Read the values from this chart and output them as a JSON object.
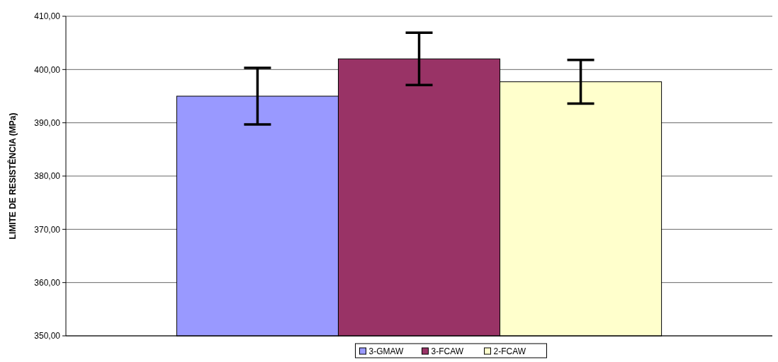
{
  "chart_data": {
    "type": "bar",
    "ylabel": "LIMITE DE RESISTÊNCIA (MPa)",
    "categories": [
      null
    ],
    "series": [
      {
        "name": "3-GMAW",
        "color": "#9999ff",
        "values": [
          395.0
        ],
        "errors": [
          5.3
        ]
      },
      {
        "name": "3-FCAW",
        "color": "#993366",
        "values": [
          402.0
        ],
        "errors": [
          4.9
        ]
      },
      {
        "name": "2-FCAW",
        "color": "#ffffcc",
        "values": [
          397.7
        ],
        "errors": [
          4.1
        ]
      }
    ],
    "ylim": [
      350,
      410
    ],
    "yticks": [
      {
        "value": 350,
        "label": "350,00"
      },
      {
        "value": 360,
        "label": "360,00"
      },
      {
        "value": 370,
        "label": "370,00"
      },
      {
        "value": 380,
        "label": "380,00"
      },
      {
        "value": 390,
        "label": "390,00"
      },
      {
        "value": 400,
        "label": "400,00"
      },
      {
        "value": 410,
        "label": "410,00"
      }
    ],
    "grid": "y",
    "legend": "bottom"
  }
}
